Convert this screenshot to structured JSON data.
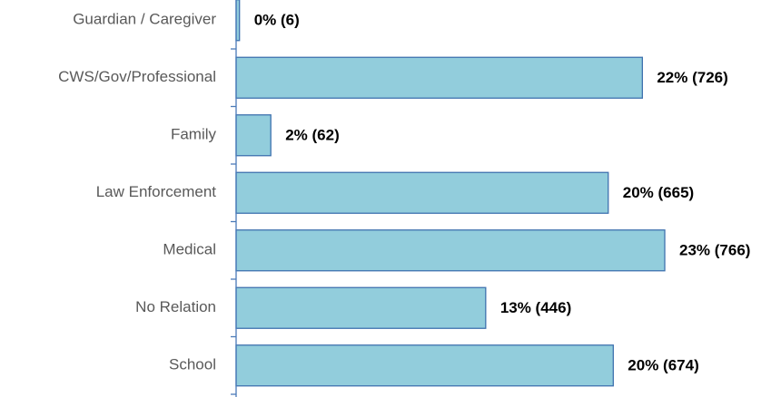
{
  "chart_data": {
    "type": "hbar",
    "categories": [
      "Guardian / Caregiver",
      "CWS/Gov/Professional",
      "Family",
      "Law Enforcement",
      "Medical",
      "No Relation",
      "School"
    ],
    "values": [
      6,
      726,
      62,
      665,
      766,
      446,
      674
    ],
    "value_labels": [
      "0% (6)",
      "22% (726)",
      "2% (62)",
      "20% (665)",
      "23% (766)",
      "13% (446)",
      "20% (674)"
    ],
    "color": "#92cddc",
    "edge_color": "#3f72af"
  }
}
